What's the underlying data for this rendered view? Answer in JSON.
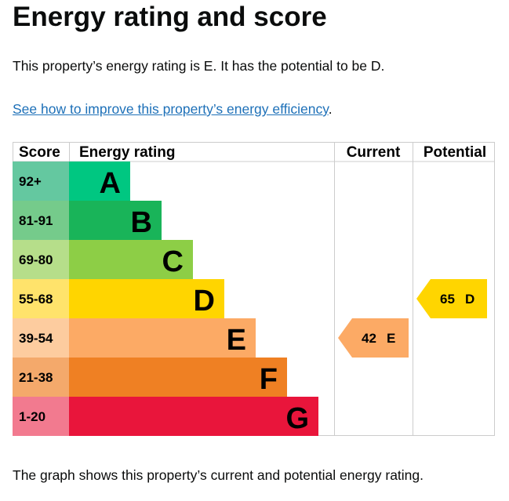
{
  "title": "Energy rating and score",
  "intro": "This property’s energy rating is E. It has the potential to be D.",
  "link": "See how to improve this property’s energy efficiency",
  "link_suffix": ".",
  "footer": "The graph shows this property’s current and potential energy rating.",
  "table": {
    "headers": {
      "score": "Score",
      "rating": "Energy rating",
      "current": "Current",
      "potential": "Potential"
    },
    "bands": [
      {
        "letter": "A",
        "range": "92+",
        "color": "#00c781",
        "light": "#64c8a0"
      },
      {
        "letter": "B",
        "range": "81-91",
        "color": "#19b459",
        "light": "#75cb8b"
      },
      {
        "letter": "C",
        "range": "69-80",
        "color": "#8dce46",
        "light": "#b6de8a"
      },
      {
        "letter": "D",
        "range": "55-68",
        "color": "#ffd500",
        "light": "#ffe36b"
      },
      {
        "letter": "E",
        "range": "39-54",
        "color": "#fcaa65",
        "light": "#fdcc9f"
      },
      {
        "letter": "F",
        "range": "21-38",
        "color": "#ef8023",
        "light": "#f4a96b"
      },
      {
        "letter": "G",
        "range": "1-20",
        "color": "#e9153b",
        "light": "#f27a8f"
      }
    ],
    "current": {
      "score": "42",
      "letter": "E",
      "band": 4
    },
    "potential": {
      "score": "65",
      "letter": "D",
      "band": 3
    }
  }
}
